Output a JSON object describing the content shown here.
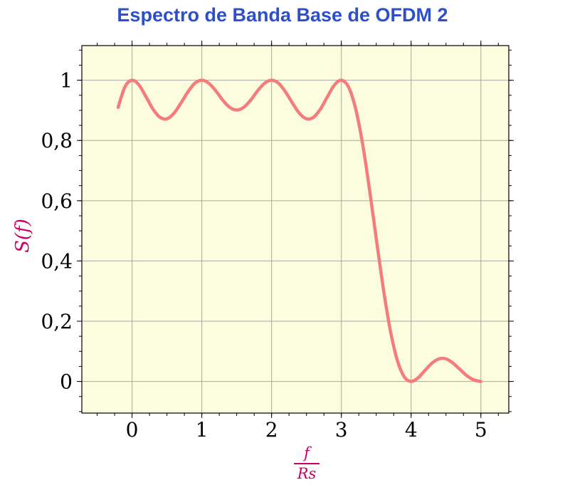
{
  "title": "Espectro de Banda Base de OFDM 2",
  "axes": {
    "ylabel": "S(f)",
    "xlabel_numerator": "f",
    "xlabel_denominator": "Rs"
  },
  "colors": {
    "title": "#2D50C8",
    "axis_label": "#CC0066",
    "curve": "#F47C7C",
    "plot_background": "#FCFCDF",
    "grid": "#A8A8A8",
    "frame": "#000000"
  },
  "chart_data": {
    "type": "line",
    "title": "Espectro de Banda Base de OFDM 2",
    "xlabel": "f/Rs",
    "ylabel": "S(f)",
    "xlim": [
      -0.72,
      5.4
    ],
    "ylim": [
      -0.105,
      1.115
    ],
    "grid": true,
    "xticks": {
      "values": [
        0,
        1,
        2,
        3,
        4,
        5
      ],
      "labels": [
        "0",
        "1",
        "2",
        "3",
        "4",
        "5"
      ]
    },
    "yticks": {
      "values": [
        0,
        0.2,
        0.4,
        0.6,
        0.8,
        1
      ],
      "labels": [
        "0",
        "0,2",
        "0,4",
        "0,6",
        "0,8",
        "1"
      ]
    },
    "minor_tick_step": {
      "x": 0.25,
      "y": 0.05
    },
    "series": [
      {
        "name": "S(f)",
        "x": [
          -0.2,
          -0.1,
          0,
          0.1,
          0.2,
          0.3,
          0.4,
          0.5,
          0.6,
          0.7,
          0.8,
          0.9,
          1,
          1.1,
          1.2,
          1.3,
          1.4,
          1.5,
          1.6,
          1.7,
          1.8,
          1.9,
          2,
          2.1,
          2.2,
          2.3,
          2.4,
          2.5,
          2.6,
          2.7,
          2.8,
          2.9,
          3,
          3.1,
          3.2,
          3.3,
          3.4,
          3.5,
          3.6,
          3.7,
          3.8,
          3.9,
          4,
          4.1,
          4.2,
          4.3,
          4.4,
          4.5,
          4.6,
          4.7,
          4.8,
          4.9,
          5
        ],
        "y": [
          0.91,
          0.979,
          1.0,
          0.984,
          0.945,
          0.904,
          0.877,
          0.872,
          0.89,
          0.924,
          0.961,
          0.99,
          1.0,
          0.99,
          0.965,
          0.934,
          0.91,
          0.901,
          0.91,
          0.934,
          0.965,
          0.99,
          1.0,
          0.99,
          0.961,
          0.924,
          0.89,
          0.872,
          0.877,
          0.904,
          0.945,
          0.984,
          1.0,
          0.979,
          0.91,
          0.795,
          0.643,
          0.475,
          0.311,
          0.172,
          0.072,
          0.016,
          0.0,
          0.012,
          0.037,
          0.061,
          0.075,
          0.075,
          0.061,
          0.04,
          0.019,
          0.005,
          0.0
        ]
      }
    ]
  }
}
